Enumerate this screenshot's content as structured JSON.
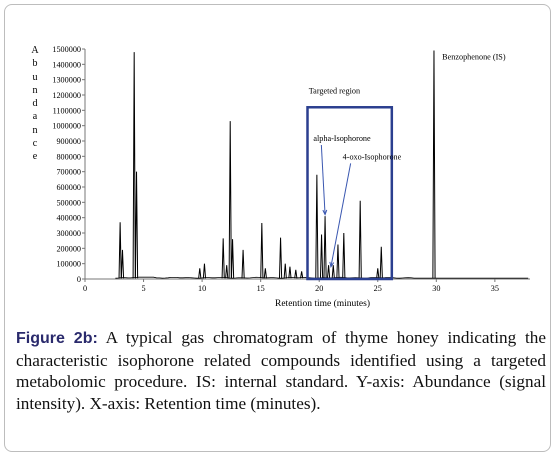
{
  "chart_data": {
    "type": "line",
    "title": "",
    "ylabel": "Abundance",
    "xlabel": "Retention time (minutes)",
    "xlim": [
      0,
      38
    ],
    "ylim": [
      0,
      1500000
    ],
    "x_ticks": [
      0,
      5,
      10,
      15,
      20,
      25,
      30,
      35
    ],
    "y_ticks": [
      0,
      100000,
      200000,
      300000,
      400000,
      500000,
      600000,
      700000,
      800000,
      900000,
      1000000,
      1100000,
      1200000,
      1300000,
      1400000,
      1500000
    ],
    "grid": false,
    "series": [
      {
        "name": "",
        "peaks": [
          {
            "x": 3.0,
            "y": 370000
          },
          {
            "x": 3.2,
            "y": 190000
          },
          {
            "x": 4.2,
            "y": 1480000
          },
          {
            "x": 4.4,
            "y": 700000
          },
          {
            "x": 9.8,
            "y": 70000
          },
          {
            "x": 10.2,
            "y": 100000
          },
          {
            "x": 11.8,
            "y": 265000
          },
          {
            "x": 12.1,
            "y": 90000
          },
          {
            "x": 12.4,
            "y": 1030000
          },
          {
            "x": 12.6,
            "y": 260000
          },
          {
            "x": 13.5,
            "y": 190000
          },
          {
            "x": 15.1,
            "y": 365000
          },
          {
            "x": 15.4,
            "y": 70000
          },
          {
            "x": 16.7,
            "y": 270000
          },
          {
            "x": 17.1,
            "y": 100000
          },
          {
            "x": 17.5,
            "y": 80000
          },
          {
            "x": 18.0,
            "y": 60000
          },
          {
            "x": 18.5,
            "y": 50000
          },
          {
            "x": 19.8,
            "y": 680000
          },
          {
            "x": 20.2,
            "y": 290000
          },
          {
            "x": 20.5,
            "y": 410000
          },
          {
            "x": 20.8,
            "y": 90000
          },
          {
            "x": 21.2,
            "y": 90000
          },
          {
            "x": 21.6,
            "y": 225000
          },
          {
            "x": 22.1,
            "y": 300000
          },
          {
            "x": 23.5,
            "y": 510000
          },
          {
            "x": 25.0,
            "y": 70000
          },
          {
            "x": 25.3,
            "y": 210000
          },
          {
            "x": 29.8,
            "y": 1490000
          }
        ]
      }
    ],
    "annotations": [
      {
        "text": "Benzophenone (IS)",
        "x": 30.5,
        "y": 1430000
      },
      {
        "text": "Targeted region",
        "x": 21.3,
        "y": 1210000,
        "box": {
          "x0": 19.0,
          "x1": 26.2,
          "y0": 0,
          "y1": 1120000
        }
      },
      {
        "text": "alpha-Isophorone",
        "x": 19.5,
        "y": 900000,
        "arrow_to": {
          "x": 20.5,
          "y": 420000
        }
      },
      {
        "text": "4-oxo-Isophorone",
        "x": 22.0,
        "y": 780000,
        "arrow_to": {
          "x": 21.0,
          "y": 80000
        }
      }
    ],
    "colors": {
      "trace": "#000000",
      "box": "#2b3f8f",
      "arrow": "#3a57b0"
    }
  },
  "caption": {
    "figure_label": "Figure 2b:",
    "text": " A typical gas chromatogram of thyme honey indicating the characteristic isophorone related compounds identified using a targeted metabolomic procedure. IS: internal standard. Y-axis: Abundance (signal intensity). X-axis: Retention time (minutes)."
  }
}
